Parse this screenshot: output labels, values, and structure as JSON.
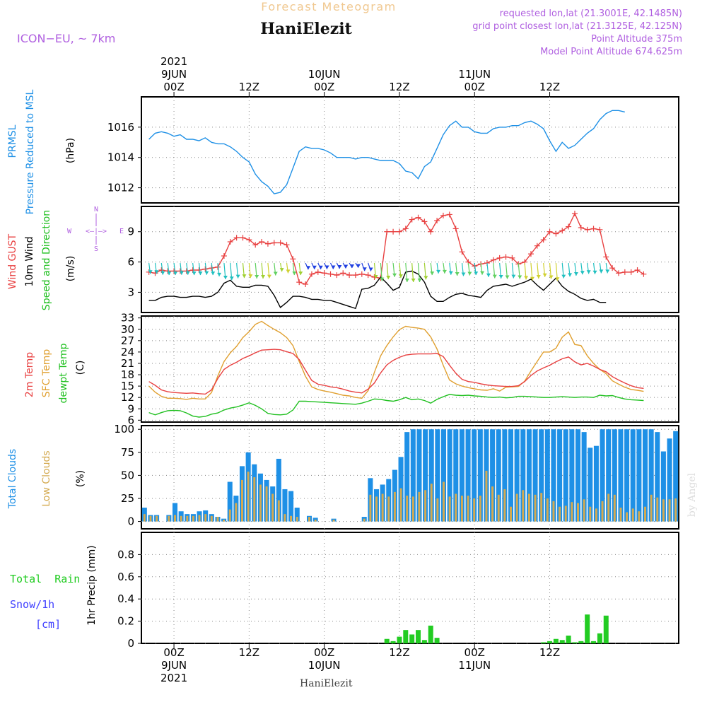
{
  "header": {
    "title": "Forecast Meteogram",
    "station": "HaniElezit",
    "model": "ICON−EU, ~ 7km",
    "requested": "requested lon,lat (21.3001E, 42.1485N)",
    "gridpoint": "grid point closest lon,lat (21.3125E, 42.125N)",
    "point_alt": "Point Altitude 375m",
    "model_alt": "Model Point Altitude 674.625m",
    "footer_station": "HaniElezit",
    "watermark": "by Angel"
  },
  "colors": {
    "prmsl": "#1e90e6",
    "gust": "#e84040",
    "wind": "#000000",
    "temp2m": "#e84040",
    "sfc": "#e0a030",
    "dewpt": "#20c020",
    "total_clouds": "#1e90e6",
    "low_clouds": "#d4aa50",
    "rain": "#22cc22",
    "snow": "#4040ff",
    "violet": "#b060e0"
  },
  "chart_data": [
    {
      "type": "line",
      "panel": "pressure",
      "ylabel_lines": [
        "PRMSL",
        "Pressure Reduced to MSL"
      ],
      "unit": "(hPa)",
      "ylim": [
        1011,
        1018
      ],
      "yticks": [
        "1012",
        "1014",
        "1016"
      ],
      "x_hours": [
        0,
        1,
        2,
        3,
        4,
        5,
        6,
        7,
        8,
        9,
        10,
        11,
        12,
        13,
        14,
        15,
        16,
        17,
        18,
        19,
        20,
        21,
        22,
        23,
        24,
        25,
        26,
        27,
        28,
        29,
        30,
        31,
        32,
        33,
        34,
        35,
        36,
        37,
        38,
        39,
        40,
        41,
        42,
        43,
        44,
        45,
        46,
        47,
        48,
        49,
        50,
        51,
        52,
        53,
        54,
        55,
        56,
        57,
        58,
        59,
        60,
        61,
        62,
        63,
        64,
        65,
        66,
        67,
        68,
        69,
        70,
        71,
        72,
        73,
        74,
        75,
        76
      ],
      "series": [
        {
          "values": [
            1015.2,
            1015.6,
            1015.7,
            1015.6,
            1015.4,
            1015.5,
            1015.2,
            1015.2,
            1015.1,
            1015.3,
            1015.0,
            1014.9,
            1014.9,
            1014.7,
            1014.4,
            1014.0,
            1013.7,
            1012.9,
            1012.4,
            1012.1,
            1011.6,
            1011.7,
            1012.2,
            1013.3,
            1014.4,
            1014.7,
            1014.6,
            1014.6,
            1014.5,
            1014.3,
            1014.0,
            1014.0,
            1014.0,
            1013.9,
            1014.0,
            1014.0,
            1013.9,
            1013.8,
            1013.8,
            1013.8,
            1013.6,
            1013.1,
            1013.0,
            1012.6,
            1013.4,
            1013.7,
            1014.6,
            1015.5,
            1016.1,
            1016.4,
            1016.0,
            1016.0,
            1015.7,
            1015.6,
            1015.6,
            1015.9,
            1016.0,
            1016.0,
            1016.1,
            1016.1,
            1016.3,
            1016.4,
            1016.2,
            1015.9,
            1015.1,
            1014.4,
            1015.0,
            1014.6,
            1014.8,
            1015.2,
            1015.6,
            1015.9,
            1016.5,
            1016.9,
            1017.1,
            1017.1,
            1017.0
          ]
        }
      ]
    },
    {
      "type": "line",
      "panel": "wind",
      "ylabel_lines": [
        "Wind GUST",
        "10m Wind",
        "Speed and Direction"
      ],
      "unit": "(m/s)",
      "compass": {
        "n": "N",
        "s": "S",
        "w": "W",
        "e": "E",
        "arrow": "<—|—>"
      },
      "ylim": [
        1,
        11.5
      ],
      "yticks": [
        "3",
        "6",
        "9"
      ],
      "series": [
        {
          "name": "Wind GUST",
          "values": [
            5.0,
            4.9,
            5.2,
            5.1,
            5.1,
            5.1,
            5.1,
            5.2,
            5.2,
            5.3,
            5.4,
            5.5,
            6.6,
            8.0,
            8.4,
            8.4,
            8.2,
            7.7,
            8.0,
            7.8,
            7.9,
            7.9,
            7.7,
            6.3,
            4.0,
            3.8,
            4.8,
            5.0,
            4.9,
            4.8,
            4.7,
            4.9,
            4.7,
            4.7,
            4.8,
            4.7,
            4.5,
            4.4,
            9.0,
            9.0,
            9.0,
            9.3,
            10.2,
            10.4,
            10.0,
            9.0,
            10.1,
            10.6,
            10.7,
            9.3,
            7.0,
            6.0,
            5.6,
            5.8,
            5.9,
            6.2,
            6.4,
            6.5,
            6.4,
            5.8,
            6.0,
            6.8,
            7.6,
            8.2,
            9.0,
            8.8,
            9.1,
            9.5,
            10.8,
            9.4,
            9.2,
            9.3,
            9.2,
            6.5,
            5.4,
            4.9,
            5.0,
            5.0,
            5.2,
            4.8
          ]
        },
        {
          "name": "10m Wind",
          "values": [
            2.2,
            2.2,
            2.5,
            2.6,
            2.6,
            2.5,
            2.5,
            2.6,
            2.6,
            2.5,
            2.6,
            3.0,
            3.9,
            4.2,
            3.6,
            3.5,
            3.5,
            3.7,
            3.7,
            3.6,
            2.7,
            1.5,
            2.0,
            2.6,
            2.6,
            2.5,
            2.3,
            2.3,
            2.2,
            2.2,
            2.0,
            1.8,
            1.6,
            1.4,
            3.3,
            3.4,
            3.7,
            4.5,
            3.9,
            3.2,
            3.5,
            5.0,
            5.1,
            4.8,
            4.0,
            2.6,
            2.1,
            2.1,
            2.5,
            2.8,
            2.9,
            2.7,
            2.6,
            2.5,
            3.2,
            3.6,
            3.7,
            3.8,
            3.6,
            3.8,
            4.0,
            4.3,
            3.7,
            3.2,
            3.8,
            4.4,
            3.6,
            3.1,
            2.8,
            2.4,
            2.2,
            2.3,
            2.0,
            2.0
          ]
        }
      ]
    },
    {
      "type": "line",
      "panel": "temperature",
      "ylabel_lines": [
        "2m Temp",
        "SFC Temp",
        "dewpt Temp"
      ],
      "unit": "(C)",
      "ylim": [
        5.5,
        33.5
      ],
      "yticks": [
        "6",
        "9",
        "12",
        "15",
        "18",
        "21",
        "24",
        "27",
        "30",
        "33"
      ],
      "series": [
        {
          "name": "2m Temp",
          "values": [
            16.2,
            15.2,
            14.0,
            13.5,
            13.3,
            13.2,
            13.1,
            13.2,
            13.0,
            12.9,
            14.0,
            17.0,
            19.4,
            20.5,
            21.3,
            22.3,
            23.0,
            23.8,
            24.5,
            24.6,
            24.7,
            24.6,
            24.1,
            23.6,
            22.0,
            19.2,
            16.5,
            15.5,
            15.2,
            14.8,
            14.6,
            14.2,
            13.7,
            13.4,
            13.2,
            14.2,
            15.8,
            18.5,
            20.6,
            21.8,
            22.6,
            23.2,
            23.4,
            23.5,
            23.5,
            23.5,
            23.6,
            22.8,
            20.5,
            18.4,
            16.8,
            16.2,
            16.0,
            15.6,
            15.3,
            15.1,
            15.0,
            14.9,
            14.9,
            15.1,
            16.2,
            17.8,
            19.0,
            19.8,
            20.5,
            21.4,
            22.2,
            22.7,
            21.4,
            20.6,
            21.0,
            20.3,
            19.4,
            18.8,
            17.5,
            16.6,
            15.8,
            15.1,
            14.6,
            14.4
          ]
        },
        {
          "name": "SFC Temp",
          "values": [
            15.0,
            13.4,
            12.3,
            11.8,
            11.8,
            11.7,
            11.5,
            11.8,
            11.6,
            11.6,
            13.3,
            17.7,
            21.5,
            23.8,
            25.5,
            27.8,
            29.4,
            31.3,
            32.1,
            31.0,
            30.0,
            29.1,
            27.8,
            25.7,
            21.5,
            17.6,
            14.8,
            14.1,
            13.7,
            13.4,
            13.0,
            12.6,
            12.4,
            12.0,
            11.8,
            13.8,
            18.6,
            23.0,
            25.7,
            28.0,
            29.9,
            30.8,
            30.5,
            30.3,
            30.0,
            28.0,
            24.8,
            20.5,
            16.6,
            15.6,
            15.0,
            14.6,
            14.3,
            14.0,
            13.9,
            14.3,
            13.7,
            14.7,
            14.8,
            14.9,
            16.3,
            19.0,
            21.5,
            24.0,
            24.0,
            25.0,
            27.9,
            29.3,
            26.0,
            25.7,
            23.0,
            21.0,
            19.4,
            18.3,
            16.4,
            15.5,
            14.7,
            14.1,
            13.9,
            13.6
          ]
        },
        {
          "name": "dewpt Temp",
          "values": [
            8.0,
            7.4,
            8.0,
            8.5,
            8.6,
            8.5,
            7.9,
            7.1,
            6.8,
            7.0,
            7.6,
            7.9,
            8.7,
            9.2,
            9.5,
            10.0,
            10.6,
            9.9,
            9.0,
            7.8,
            7.5,
            7.4,
            7.6,
            8.7,
            11.0,
            11.0,
            10.9,
            10.8,
            10.7,
            10.6,
            10.5,
            10.4,
            10.3,
            10.2,
            10.5,
            11.0,
            11.6,
            11.5,
            11.2,
            11.0,
            11.4,
            12.0,
            11.4,
            11.6,
            11.2,
            10.5,
            11.5,
            12.2,
            12.8,
            12.6,
            12.5,
            12.6,
            12.4,
            12.3,
            12.1,
            12.0,
            12.1,
            11.9,
            12.0,
            12.3,
            12.3,
            12.2,
            12.1,
            12.0,
            12.0,
            12.1,
            12.2,
            12.1,
            12.0,
            12.1,
            12.1,
            12.0,
            12.6,
            12.4,
            12.5,
            12.0,
            11.6,
            11.4,
            11.3,
            11.2
          ]
        }
      ]
    },
    {
      "type": "bar",
      "panel": "clouds",
      "ylabel_lines": [
        "Total Clouds",
        "Low Clouds"
      ],
      "unit": "(%)",
      "ylim": [
        -8,
        104
      ],
      "yticks": [
        "0",
        "25",
        "50",
        "75",
        "100"
      ],
      "series": [
        {
          "name": "Total Clouds",
          "values": [
            15,
            7,
            7,
            0,
            7,
            20,
            11,
            8,
            8,
            11,
            12,
            8,
            5,
            3,
            43,
            28,
            60,
            75,
            62,
            52,
            45,
            38,
            68,
            35,
            33,
            15,
            0,
            6,
            4,
            0,
            0,
            3,
            0,
            0,
            0,
            0,
            5,
            47,
            35,
            40,
            46,
            56,
            70,
            97,
            100,
            100,
            100,
            100,
            100,
            100,
            100,
            100,
            100,
            100,
            100,
            100,
            100,
            100,
            100,
            100,
            100,
            100,
            100,
            100,
            100,
            100,
            100,
            100,
            100,
            100,
            100,
            100,
            97,
            80,
            82,
            100,
            100,
            100,
            100,
            100,
            100,
            100,
            100,
            100,
            97,
            76,
            90,
            98
          ]
        },
        {
          "name": "Low Clouds",
          "values": [
            8,
            6,
            6,
            0,
            6,
            7,
            6,
            6,
            6,
            7,
            8,
            6,
            5,
            2,
            13,
            20,
            45,
            54,
            48,
            40,
            38,
            30,
            23,
            8,
            6,
            5,
            0,
            5,
            2,
            0,
            0,
            2,
            0,
            0,
            0,
            0,
            3,
            29,
            27,
            30,
            27,
            32,
            36,
            28,
            27,
            32,
            34,
            41,
            25,
            43,
            27,
            30,
            28,
            28,
            25,
            28,
            55,
            38,
            29,
            35,
            16,
            30,
            34,
            30,
            29,
            31,
            25,
            22,
            16,
            17,
            21,
            20,
            24,
            16,
            14,
            22,
            30,
            29,
            15,
            10,
            14,
            11,
            16,
            29,
            26,
            24,
            24,
            25
          ]
        }
      ]
    },
    {
      "type": "bar",
      "panel": "precip",
      "legend_lines": [
        "Total  Rain",
        "Snow/1h",
        "[cm]"
      ],
      "ylabel": "1hr Precip (mm)",
      "ylim": [
        0,
        1.0
      ],
      "yticks": [
        "0",
        "0.2",
        "0.4",
        "0.6",
        "0.8"
      ],
      "series": [
        {
          "name": "Total Rain",
          "values": [
            0,
            0,
            0,
            0,
            0,
            0,
            0,
            0,
            0,
            0,
            0,
            0,
            0,
            0,
            0,
            0,
            0,
            0,
            0,
            0,
            0,
            0,
            0,
            0,
            0,
            0,
            0,
            0,
            0,
            0,
            0,
            0,
            0,
            0,
            0,
            0,
            0,
            0,
            0.04,
            0.02,
            0.06,
            0.12,
            0.08,
            0.12,
            0.03,
            0.16,
            0.05,
            0,
            0,
            0,
            0,
            0,
            0,
            0,
            0,
            0,
            0,
            0,
            0,
            0,
            0,
            0,
            0,
            0.01,
            0.02,
            0.04,
            0.03,
            0.07,
            0.01,
            0.02,
            0.26,
            0.02,
            0.09,
            0.25,
            0,
            0,
            0,
            0,
            0,
            0
          ]
        }
      ]
    }
  ],
  "time_axis": {
    "top": [
      {
        "hour": 0,
        "lines": [
          "2021",
          "9JUN",
          "00Z"
        ]
      },
      {
        "hour": 12,
        "lines": [
          "",
          "",
          "12Z"
        ]
      },
      {
        "hour": 24,
        "lines": [
          "",
          "10JUN",
          "00Z"
        ]
      },
      {
        "hour": 36,
        "lines": [
          "",
          "",
          "12Z"
        ]
      },
      {
        "hour": 48,
        "lines": [
          "",
          "11JUN",
          "00Z"
        ]
      },
      {
        "hour": 60,
        "lines": [
          "",
          "",
          "12Z"
        ]
      }
    ],
    "bottom": [
      {
        "hour": 0,
        "lines": [
          "00Z",
          "9JUN",
          "2021"
        ]
      },
      {
        "hour": 12,
        "lines": [
          "12Z",
          "",
          ""
        ]
      },
      {
        "hour": 24,
        "lines": [
          "00Z",
          "10JUN",
          ""
        ]
      },
      {
        "hour": 36,
        "lines": [
          "12Z",
          "",
          ""
        ]
      },
      {
        "hour": 48,
        "lines": [
          "00Z",
          "11JUN",
          ""
        ]
      },
      {
        "hour": 60,
        "lines": [
          "12Z",
          "",
          ""
        ]
      }
    ]
  }
}
